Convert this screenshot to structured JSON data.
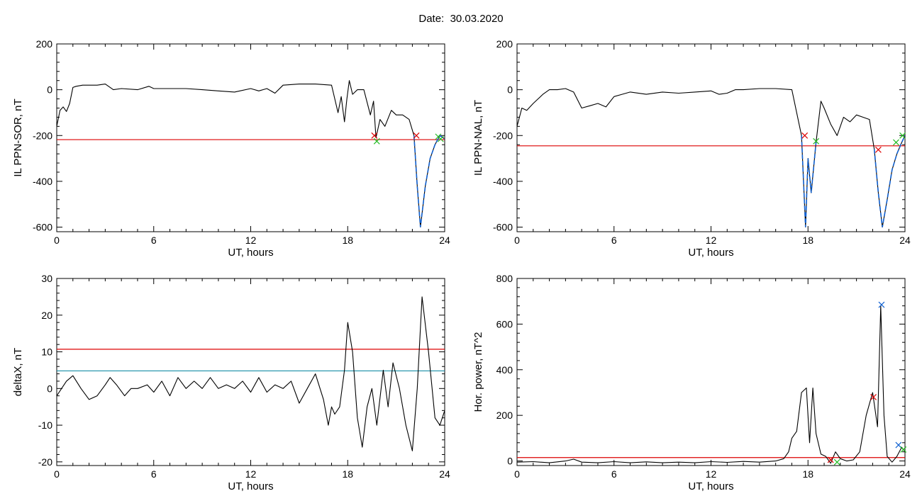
{
  "figure": {
    "date_label": "Date:",
    "date_value": "30.03.2020"
  },
  "colors": {
    "curve": "#000000",
    "threshold_red": "#dd0000",
    "threshold_teal": "#1a8fa8",
    "dip_blue": "#1060d0",
    "marker_red": "#dd0000",
    "marker_green": "#22bb22",
    "marker_blue": "#1060d0"
  },
  "chart_data": [
    {
      "id": "sor",
      "type": "line",
      "xlabel": "UT, hours",
      "ylabel": "IL PPN-SOR, nT",
      "xlim": [
        0,
        24
      ],
      "ylim": [
        -620,
        200
      ],
      "xticks": [
        0,
        6,
        12,
        18,
        24
      ],
      "yticks": [
        -600,
        -400,
        -200,
        0,
        200
      ],
      "thresholds": [
        {
          "y": -218,
          "color": "red"
        }
      ],
      "series": [
        {
          "x": [
            0,
            0.2,
            0.4,
            0.6,
            0.8,
            1.0,
            1.2,
            1.6,
            2.5,
            3.0,
            3.5,
            4.0,
            5.0,
            5.7,
            6.0,
            7.0,
            8.0,
            9.0,
            10.0,
            11.0,
            12.0,
            12.5,
            13.0,
            13.5,
            14.0,
            15.0,
            16.0,
            17.0,
            17.4,
            17.6,
            17.8,
            17.95,
            18.1,
            18.3,
            18.6,
            19.0,
            19.4,
            19.6,
            19.75,
            20.0,
            20.3,
            20.7,
            21.0,
            21.4,
            21.8,
            22.1,
            22.3,
            22.5,
            22.8,
            23.1,
            23.4,
            23.7,
            24.0
          ],
          "y": [
            -160,
            -90,
            -75,
            -95,
            -60,
            10,
            15,
            20,
            20,
            25,
            0,
            5,
            0,
            15,
            5,
            5,
            5,
            0,
            -5,
            -10,
            5,
            -5,
            5,
            -15,
            20,
            25,
            25,
            20,
            -100,
            -30,
            -140,
            -40,
            40,
            -20,
            0,
            0,
            -110,
            -50,
            -210,
            -130,
            -160,
            -90,
            -110,
            -110,
            -130,
            -200,
            -420,
            -600,
            -420,
            -300,
            -240,
            -200,
            -215
          ],
          "dip_segments": [
            [
              21.9,
              24.0
            ]
          ]
        }
      ],
      "markers": [
        {
          "x": 19.65,
          "y": -200,
          "color": "red"
        },
        {
          "x": 19.8,
          "y": -225,
          "color": "green"
        },
        {
          "x": 22.25,
          "y": -200,
          "color": "red"
        },
        {
          "x": 23.6,
          "y": -205,
          "color": "green"
        },
        {
          "x": 23.75,
          "y": -215,
          "color": "green"
        }
      ]
    },
    {
      "id": "nal",
      "type": "line",
      "xlabel": "UT, hours",
      "ylabel": "IL PPN-NAL, nT",
      "xlim": [
        0,
        24
      ],
      "ylim": [
        -620,
        200
      ],
      "xticks": [
        0,
        6,
        12,
        18,
        24
      ],
      "yticks": [
        -600,
        -400,
        -200,
        0,
        200
      ],
      "thresholds": [
        {
          "y": -245,
          "color": "red"
        }
      ],
      "series": [
        {
          "x": [
            0,
            0.3,
            0.6,
            1.0,
            1.3,
            1.6,
            2.0,
            2.5,
            3.0,
            3.5,
            4.0,
            4.5,
            5.0,
            5.5,
            6.0,
            6.5,
            7.0,
            8.0,
            9.0,
            10.0,
            11.0,
            12.0,
            12.5,
            13.0,
            13.5,
            14.0,
            15.0,
            16.0,
            17.0,
            17.3,
            17.6,
            17.85,
            18.0,
            18.2,
            18.5,
            18.8,
            19.0,
            19.4,
            19.8,
            20.2,
            20.6,
            21.0,
            21.4,
            21.8,
            22.1,
            22.35,
            22.6,
            22.9,
            23.2,
            23.5,
            23.8,
            24.0
          ],
          "y": [
            -160,
            -80,
            -90,
            -60,
            -40,
            -20,
            0,
            0,
            5,
            -10,
            -80,
            -70,
            -60,
            -75,
            -30,
            -20,
            -10,
            -20,
            -10,
            -15,
            -10,
            -5,
            -20,
            -15,
            0,
            0,
            5,
            5,
            0,
            -100,
            -200,
            -600,
            -300,
            -450,
            -230,
            -50,
            -80,
            -150,
            -200,
            -120,
            -140,
            -110,
            -120,
            -130,
            -260,
            -450,
            -600,
            -480,
            -350,
            -280,
            -230,
            -200
          ],
          "dip_segments": [
            [
              17.6,
              18.6
            ],
            [
              22.1,
              24.0
            ]
          ]
        }
      ],
      "markers": [
        {
          "x": 17.8,
          "y": -200,
          "color": "red"
        },
        {
          "x": 18.5,
          "y": -225,
          "color": "green"
        },
        {
          "x": 22.35,
          "y": -262,
          "color": "red"
        },
        {
          "x": 23.45,
          "y": -230,
          "color": "green"
        },
        {
          "x": 23.85,
          "y": -200,
          "color": "green"
        }
      ]
    },
    {
      "id": "deltax",
      "type": "line",
      "xlabel": "UT, hours",
      "ylabel": "deltaX, nT",
      "xlim": [
        0,
        24
      ],
      "ylim": [
        -21,
        30
      ],
      "xticks": [
        0,
        6,
        12,
        18,
        24
      ],
      "yticks": [
        -20,
        -10,
        0,
        10,
        20,
        30
      ],
      "thresholds": [
        {
          "y": 10.7,
          "color": "red"
        },
        {
          "y": 4.8,
          "color": "teal"
        }
      ],
      "series": [
        {
          "x": [
            0,
            0.3,
            0.6,
            1.0,
            1.5,
            2.0,
            2.5,
            3.0,
            3.3,
            3.7,
            4.2,
            4.6,
            5.0,
            5.6,
            6.0,
            6.5,
            7.0,
            7.5,
            8.0,
            8.5,
            9.0,
            9.5,
            10.0,
            10.5,
            11.0,
            11.5,
            12.0,
            12.5,
            13.0,
            13.5,
            14.0,
            14.5,
            15.0,
            15.5,
            16.0,
            16.5,
            16.8,
            17.0,
            17.2,
            17.5,
            17.8,
            18.0,
            18.3,
            18.6,
            18.9,
            19.2,
            19.5,
            19.8,
            20.2,
            20.5,
            20.8,
            21.2,
            21.6,
            22.0,
            22.3,
            22.6,
            23.0,
            23.4,
            23.7,
            24.0
          ],
          "y": [
            -2,
            0,
            2,
            3.5,
            0,
            -3,
            -2,
            1,
            3,
            1,
            -2,
            0,
            0,
            1,
            -1,
            2,
            -2,
            3,
            0,
            2,
            0,
            3,
            0,
            1,
            0,
            2,
            -1,
            3,
            -1,
            1,
            0,
            2,
            -4,
            0,
            4,
            -3,
            -10,
            -5,
            -7,
            -5,
            5,
            18,
            10,
            -8,
            -16,
            -5,
            0,
            -10,
            5,
            -5,
            7,
            0,
            -10,
            -17,
            0,
            25,
            10,
            -8,
            -10,
            -6
          ]
        }
      ],
      "markers": []
    },
    {
      "id": "power",
      "type": "line",
      "xlabel": "UT, hours",
      "ylabel": "Hor. power, nT^2",
      "xlim": [
        0,
        24
      ],
      "ylim": [
        -20,
        800
      ],
      "xticks": [
        0,
        6,
        12,
        18,
        24
      ],
      "yticks": [
        0,
        200,
        400,
        600,
        800
      ],
      "thresholds": [
        {
          "y": 15,
          "color": "red"
        }
      ],
      "series": [
        {
          "x": [
            0,
            1,
            2,
            3,
            3.5,
            4,
            5,
            6,
            7,
            8,
            9,
            10,
            11,
            12,
            13,
            14,
            15,
            16,
            16.5,
            16.8,
            17.0,
            17.3,
            17.6,
            17.9,
            18.1,
            18.3,
            18.5,
            18.8,
            19.1,
            19.4,
            19.7,
            20.0,
            20.4,
            20.8,
            21.2,
            21.6,
            22.0,
            22.3,
            22.5,
            22.7,
            22.9,
            23.2,
            23.5,
            23.8,
            24.0
          ],
          "y": [
            -5,
            -3,
            -8,
            0,
            8,
            -5,
            -8,
            -3,
            -8,
            -4,
            -8,
            -5,
            -8,
            -3,
            -6,
            -2,
            -5,
            0,
            10,
            40,
            100,
            130,
            300,
            320,
            80,
            320,
            120,
            30,
            20,
            -10,
            40,
            10,
            0,
            5,
            40,
            200,
            300,
            150,
            680,
            200,
            20,
            -5,
            20,
            60,
            40
          ]
        }
      ],
      "markers": [
        {
          "x": 22.05,
          "y": 280,
          "color": "red"
        },
        {
          "x": 22.55,
          "y": 685,
          "color": "blue"
        },
        {
          "x": 19.4,
          "y": 5,
          "color": "red"
        },
        {
          "x": 19.8,
          "y": -5,
          "color": "green"
        },
        {
          "x": 23.6,
          "y": 70,
          "color": "blue"
        },
        {
          "x": 23.9,
          "y": 50,
          "color": "green"
        }
      ]
    }
  ]
}
